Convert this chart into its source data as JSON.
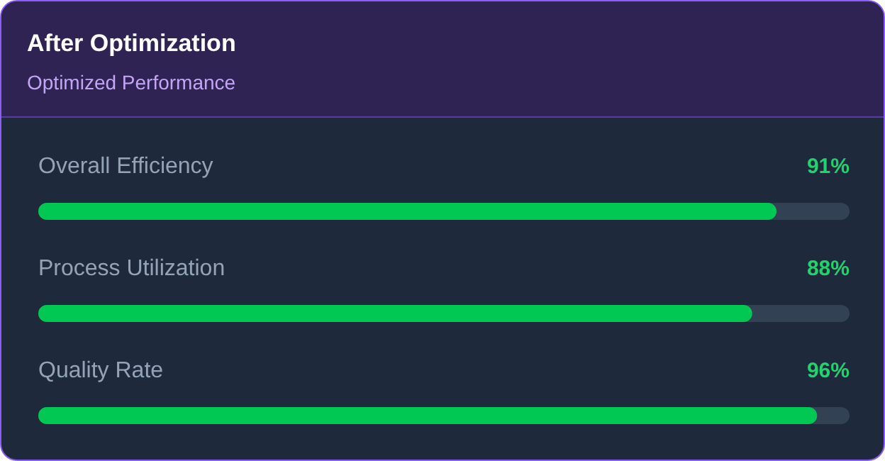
{
  "chart_data": {
    "type": "bar",
    "orientation": "horizontal",
    "title": "After Optimization",
    "subtitle": "Optimized Performance",
    "categories": [
      "Overall Efficiency",
      "Process Utilization",
      "Quality Rate"
    ],
    "values": [
      91,
      88,
      96
    ],
    "color": "#00c853",
    "value_labels": [
      "91%",
      "88%",
      "96%"
    ],
    "xlim": [
      0,
      100
    ]
  }
}
